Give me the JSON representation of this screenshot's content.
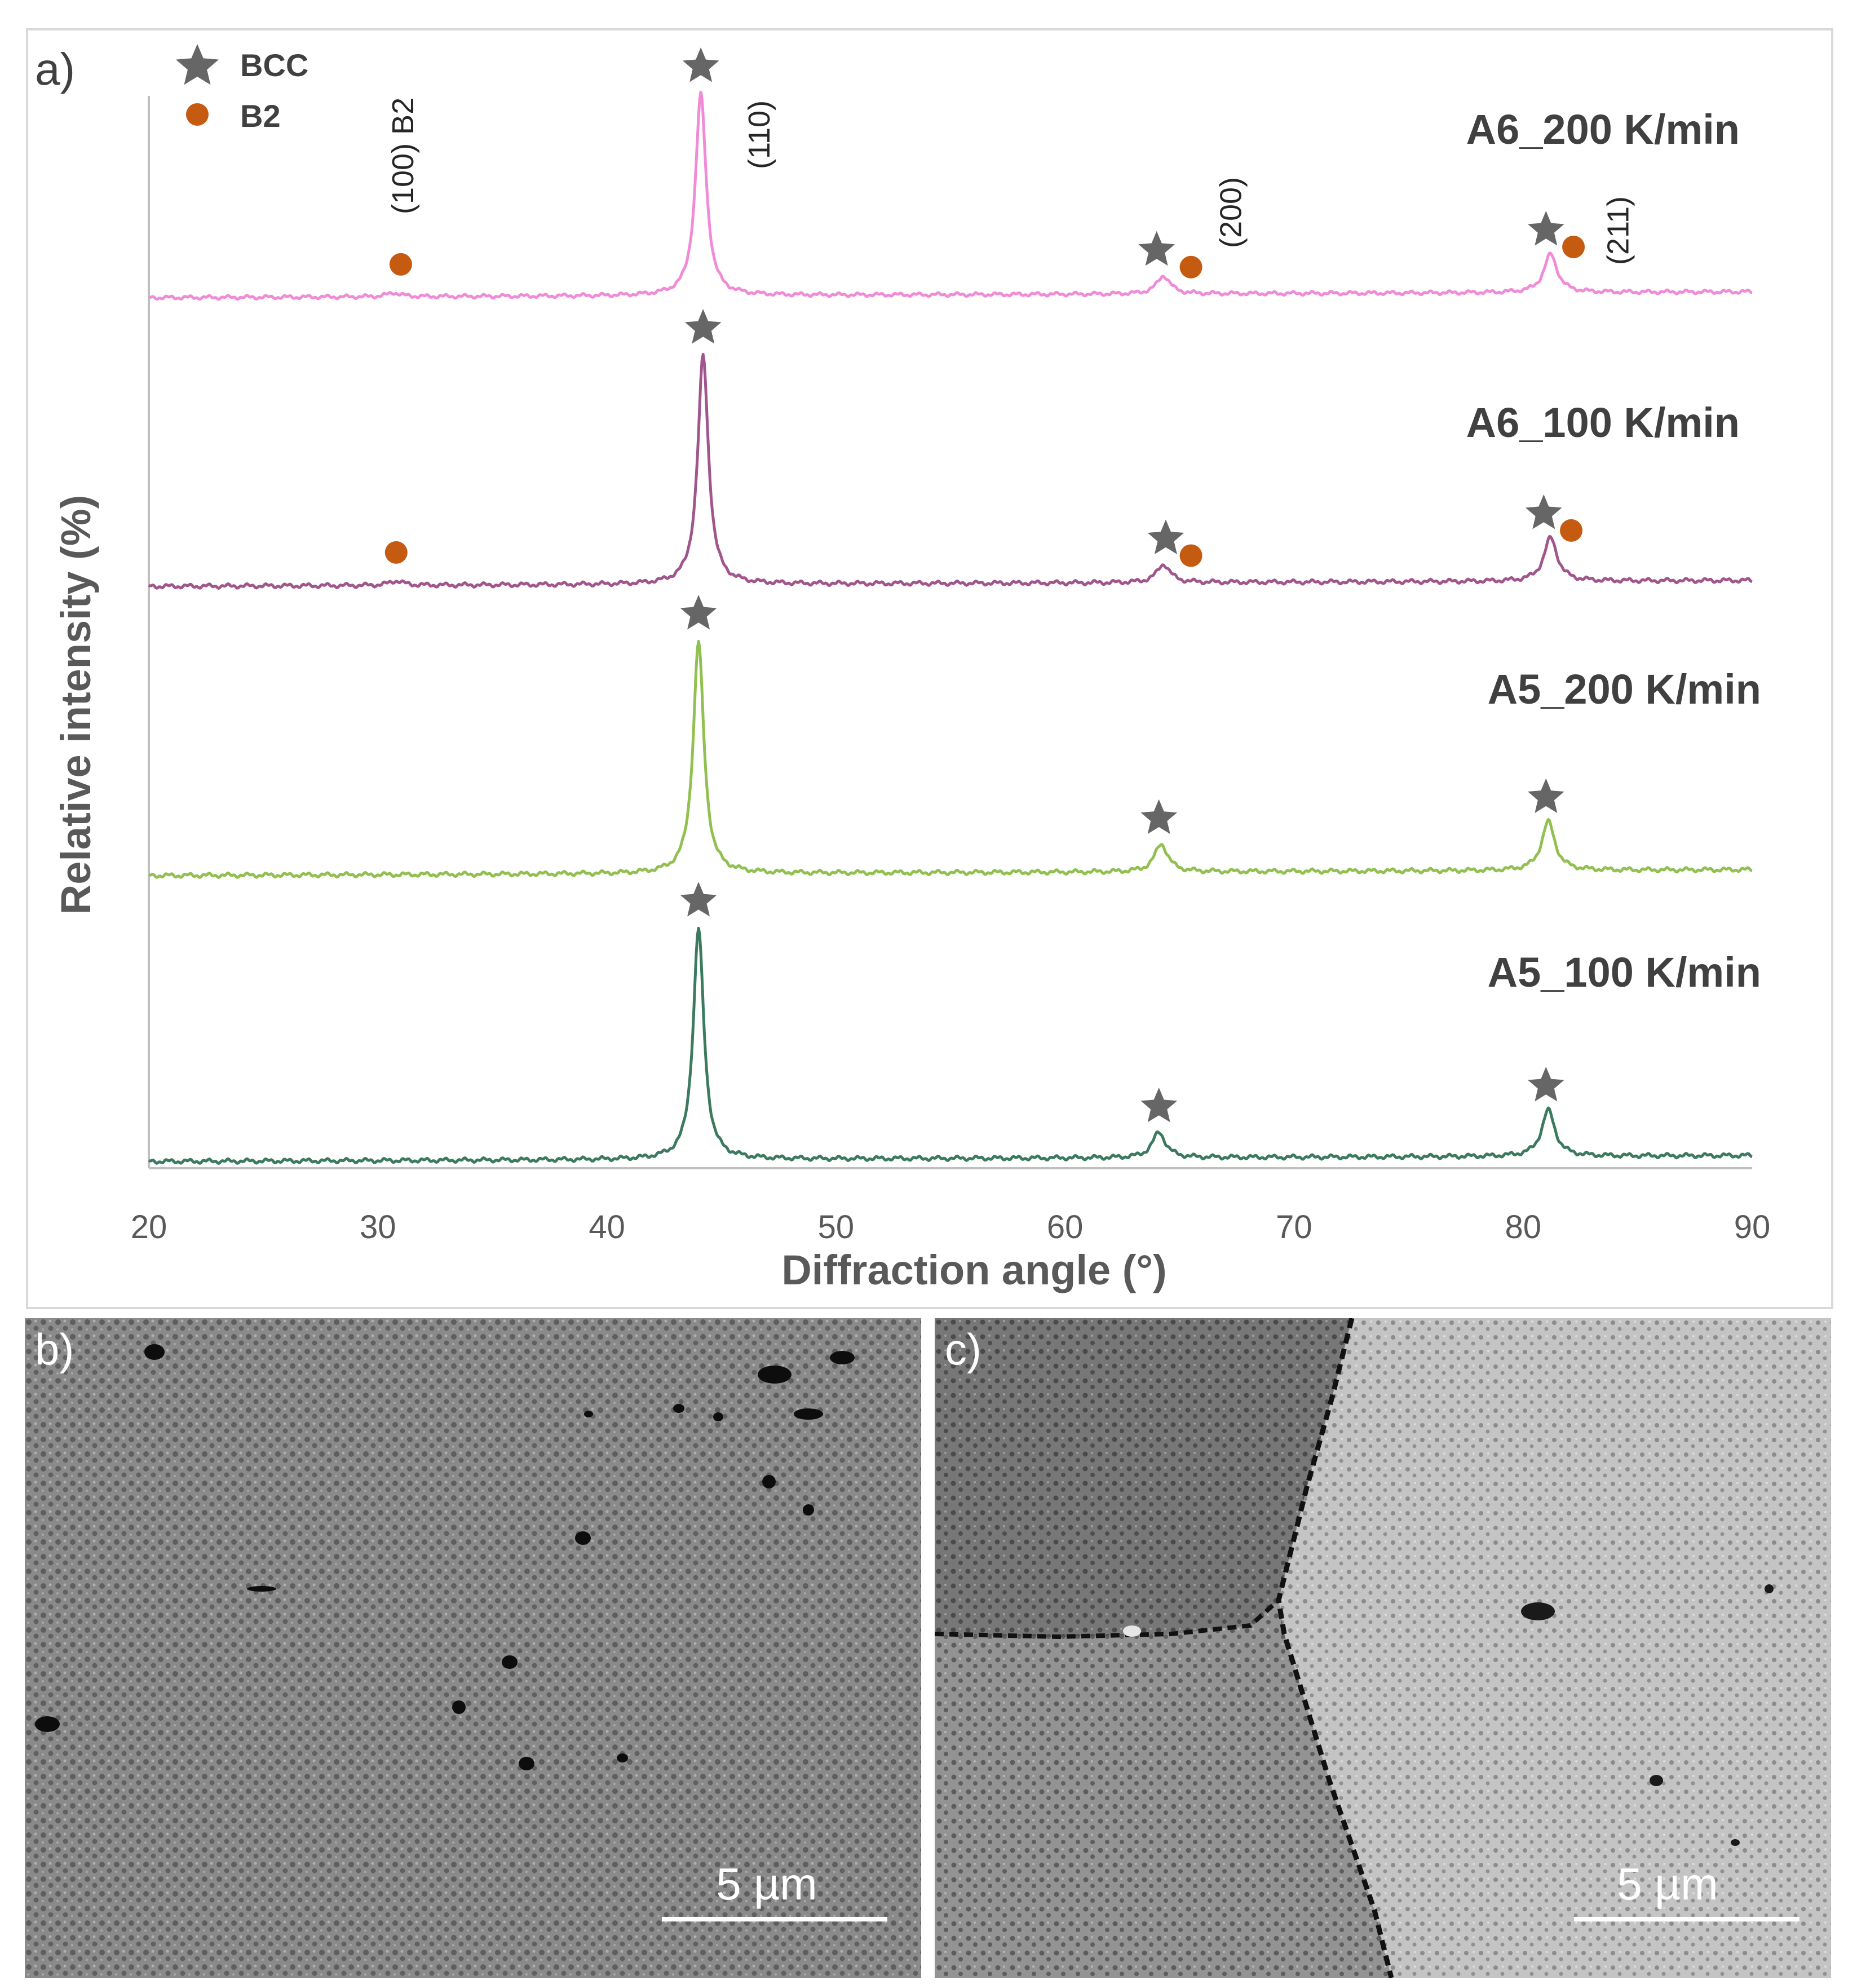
{
  "chart_data": {
    "type": "line",
    "panel_label": "a)",
    "xlabel": "Diffraction angle (°)",
    "ylabel": "Relative intensity (%)",
    "xlim": [
      20,
      90
    ],
    "x_ticks": [
      "20",
      "30",
      "40",
      "50",
      "60",
      "70",
      "80",
      "90"
    ],
    "grid": false,
    "legend": {
      "placement": "top-left",
      "entries": [
        {
          "label": "BCC",
          "marker": "star",
          "color": "#666666"
        },
        {
          "label": "B2",
          "marker": "circle",
          "color": "#c55a11"
        }
      ]
    },
    "series": [
      {
        "name": "A6_200 K/min",
        "color": "#f08bd8",
        "peaks": [
          {
            "x": 30.7,
            "h": 0.02
          },
          {
            "x": 44.1,
            "h": 1.0
          },
          {
            "x": 64.3,
            "h": 0.09
          },
          {
            "x": 81.2,
            "h": 0.19
          }
        ],
        "bcc_markers": [
          44.1,
          64.0,
          81.0
        ],
        "b2_markers": [
          31.0,
          65.5,
          82.2
        ]
      },
      {
        "name": "A6_100 K/min",
        "color": "#a0558c",
        "peaks": [
          {
            "x": 30.8,
            "h": 0.02
          },
          {
            "x": 44.2,
            "h": 1.0
          },
          {
            "x": 64.3,
            "h": 0.08
          },
          {
            "x": 81.2,
            "h": 0.19
          }
        ],
        "bcc_markers": [
          44.2,
          64.4,
          80.9
        ],
        "b2_markers": [
          30.8,
          65.5,
          82.1
        ]
      },
      {
        "name": "A5_200 K/min",
        "color": "#92c050",
        "peaks": [
          {
            "x": 44.0,
            "h": 1.0
          },
          {
            "x": 64.2,
            "h": 0.12
          },
          {
            "x": 81.1,
            "h": 0.21
          }
        ],
        "bcc_markers": [
          44.0,
          64.1,
          81.0
        ],
        "b2_markers": []
      },
      {
        "name": "A5_100 K/min",
        "color": "#3b7a5e",
        "peaks": [
          {
            "x": 44.0,
            "h": 1.0
          },
          {
            "x": 64.1,
            "h": 0.11
          },
          {
            "x": 81.1,
            "h": 0.2
          }
        ],
        "bcc_markers": [
          44.0,
          64.1,
          81.0
        ],
        "b2_markers": []
      }
    ],
    "annotations": [
      {
        "text": "(100) B2",
        "x": 31.0
      },
      {
        "text": "(110)",
        "x": 46.7
      },
      {
        "text": "(200)",
        "x": 67.3
      },
      {
        "text": "(211)",
        "x": 84.2
      }
    ]
  },
  "micrographs": [
    {
      "panel_label": "b)",
      "scale_bar": "5 µm"
    },
    {
      "panel_label": "c)",
      "scale_bar": "5 µm"
    }
  ],
  "colors": {
    "bcc_marker": "#666666",
    "b2_marker": "#c55a11",
    "axis": "#bfbfbf",
    "text": "#595959"
  }
}
